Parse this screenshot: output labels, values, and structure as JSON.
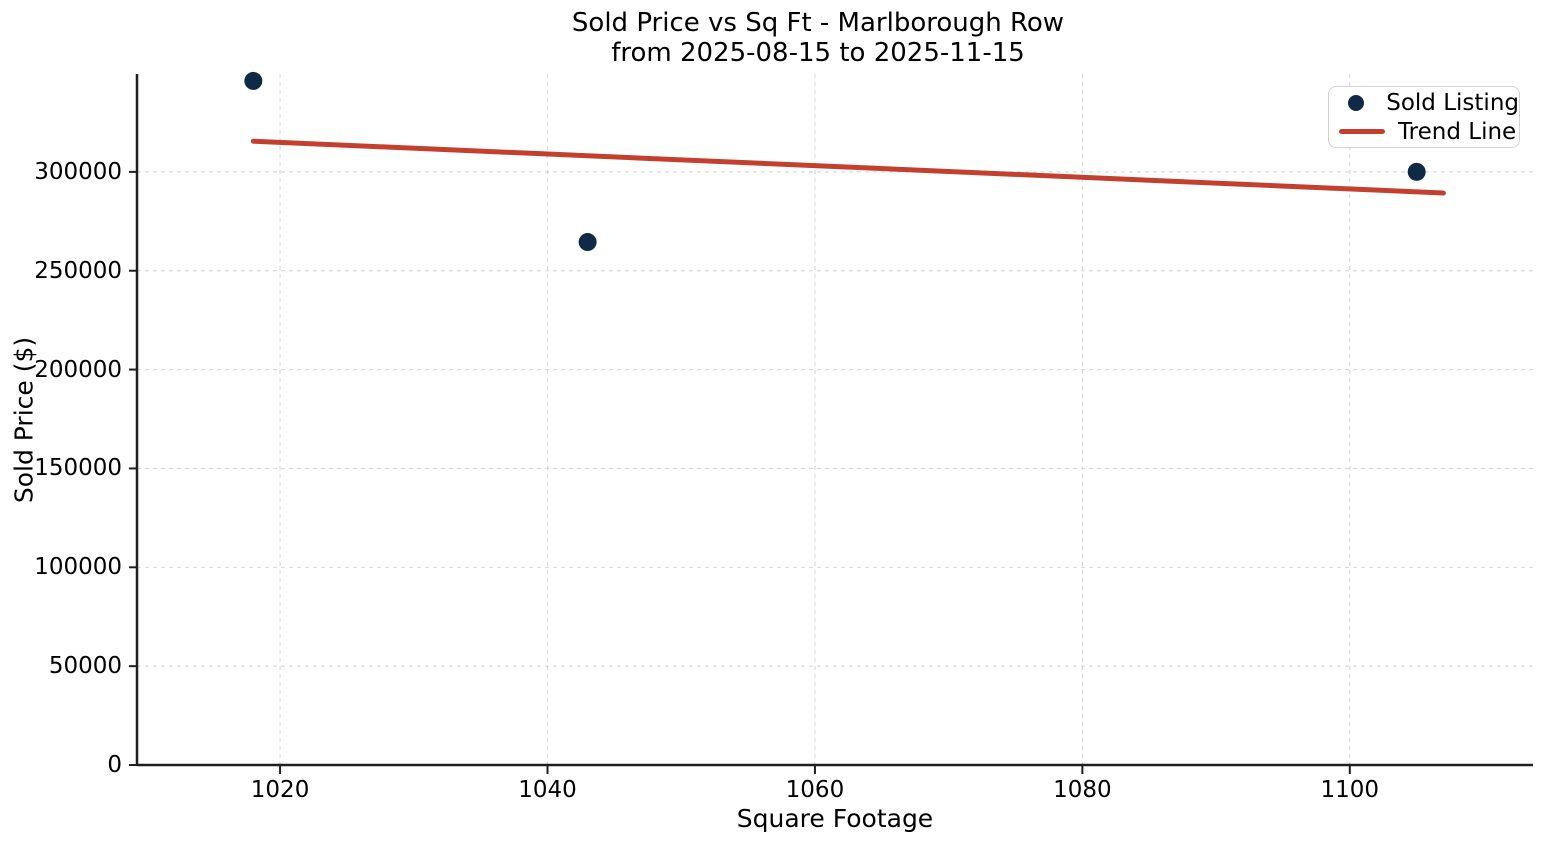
{
  "title": {
    "line1": "Sold Price vs Sq Ft - Marlborough Row",
    "line2": "from 2025-08-15 to 2025-11-15"
  },
  "axes": {
    "xlabel": "Square Footage",
    "ylabel": "Sold Price ($)"
  },
  "legend": {
    "position": "upper right",
    "items": [
      {
        "label": "Sold Listing",
        "swatch": "dot-marker-icon"
      },
      {
        "label": "Trend Line",
        "swatch": "line-swatch-icon"
      }
    ]
  },
  "colors": {
    "point": "#0e2a47",
    "trend": "#c3402f",
    "grid": "#d9d9d9",
    "axis": "#1f1f1f"
  },
  "chart_data": {
    "type": "scatter",
    "title": "Sold Price vs Sq Ft - Marlborough Row from 2025-08-15 to 2025-11-15",
    "xlabel": "Square Footage",
    "ylabel": "Sold Price ($)",
    "xlim": [
      1009.3,
      1113.7
    ],
    "ylim": [
      0,
      349500
    ],
    "xticks": [
      1020,
      1040,
      1060,
      1080,
      1100
    ],
    "yticks": [
      0,
      50000,
      100000,
      150000,
      200000,
      250000,
      300000
    ],
    "grid": true,
    "grid_style": "dashed",
    "legend_position": "upper right",
    "series": [
      {
        "name": "Sold Listing",
        "type": "scatter",
        "points": [
          [
            1018,
            346000
          ],
          [
            1043,
            264500
          ],
          [
            1105,
            300000
          ]
        ]
      },
      {
        "name": "Trend Line",
        "type": "line",
        "points": [
          [
            1018,
            315500
          ],
          [
            1107,
            289300
          ]
        ]
      }
    ]
  }
}
